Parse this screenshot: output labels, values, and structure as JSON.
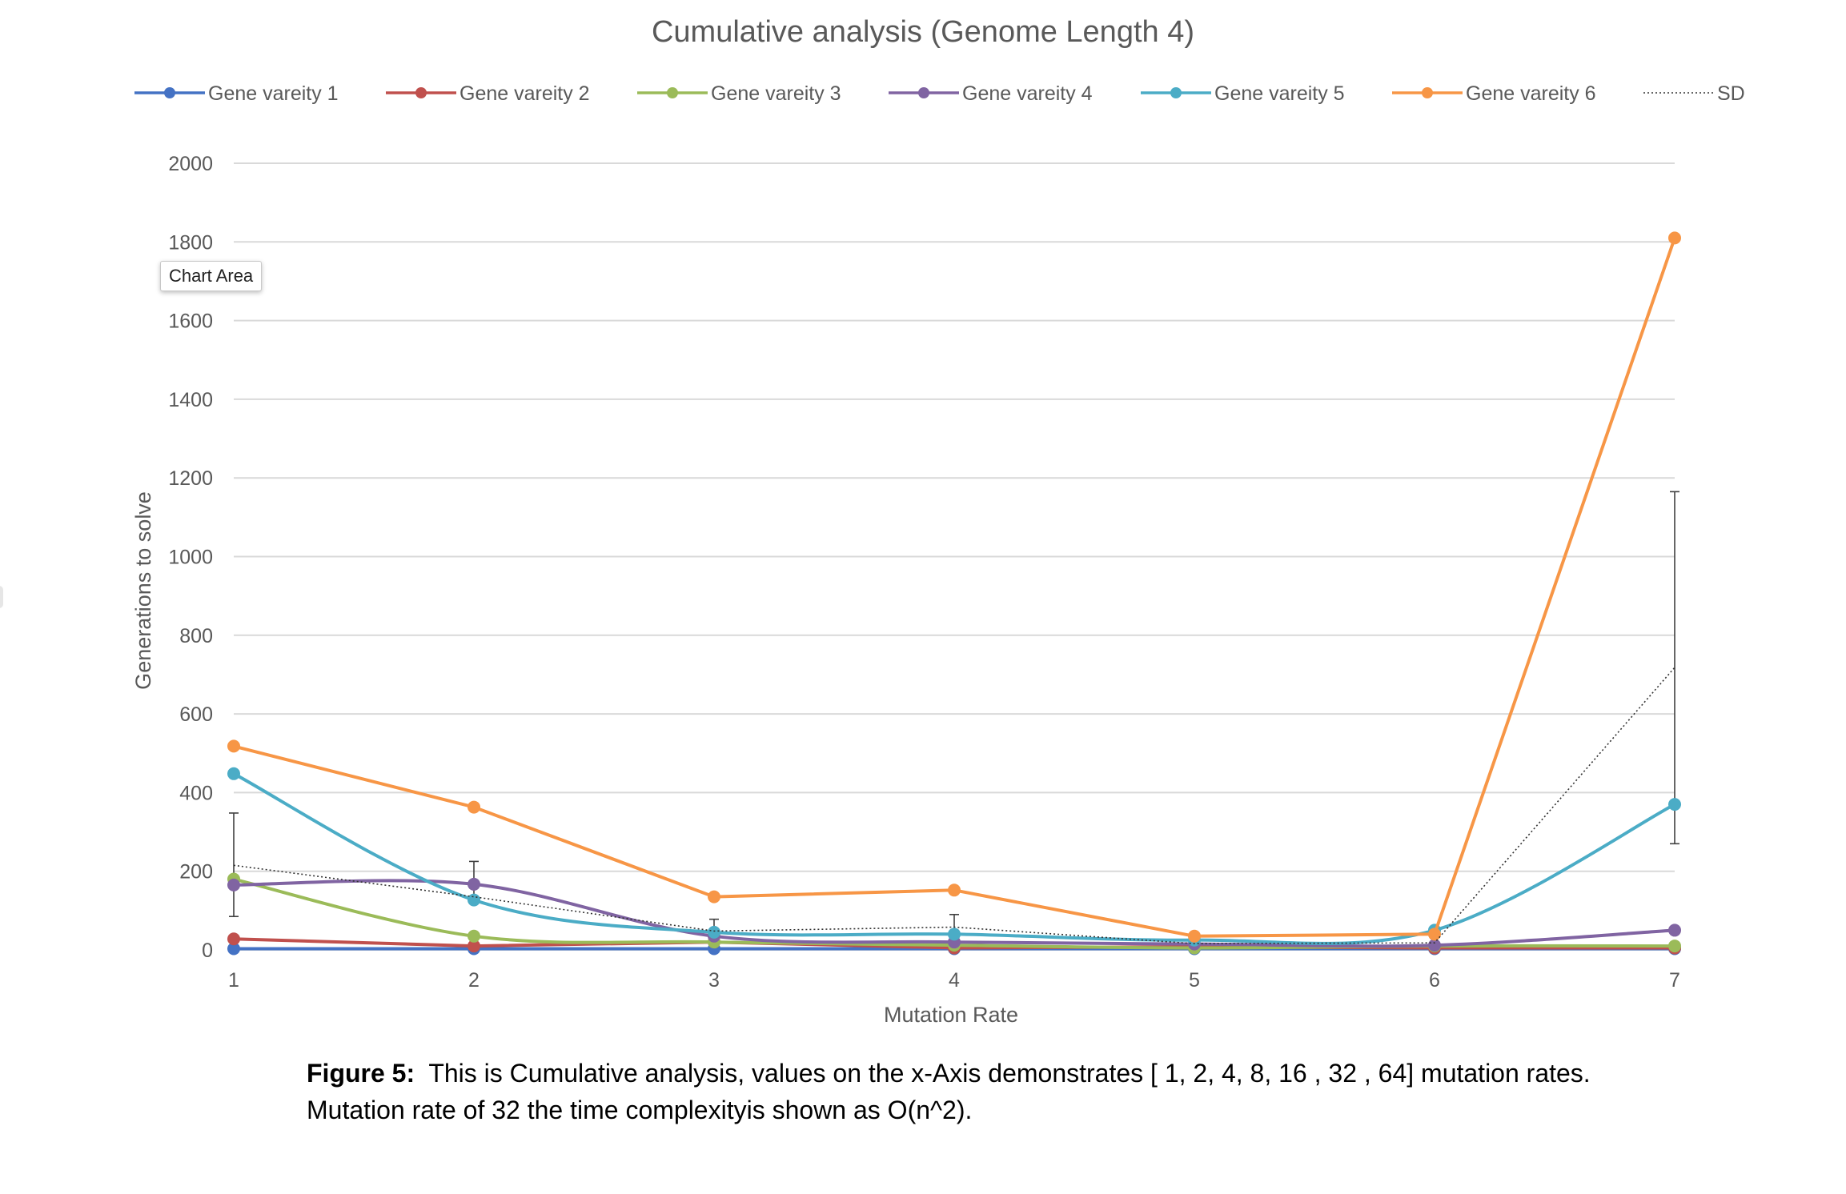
{
  "tooltip": "Chart Area",
  "caption": {
    "label": "Figure 5:",
    "text": "This is Cumulative analysis, values on the x-Axis demonstrates [ 1, 2, 4, 8, 16 , 32 , 64] mutation rates.",
    "line2": "Mutation rate of 32 the time complexityis shown as O(n^2)."
  },
  "chart_data": {
    "type": "line",
    "title": "Cumulative analysis (Genome Length 4)",
    "xlabel": "Mutation Rate",
    "ylabel": "Generations to solve",
    "categories": [
      "1",
      "2",
      "3",
      "4",
      "5",
      "6",
      "7"
    ],
    "ylim": [
      0,
      2000
    ],
    "yticks": [
      0,
      200,
      400,
      600,
      800,
      1000,
      1200,
      1400,
      1600,
      1800,
      2000
    ],
    "grid": true,
    "legend": "top",
    "series": [
      {
        "name": "Gene vareity 1",
        "color": "#4472c4",
        "smooth": false,
        "values": [
          3,
          3,
          3,
          3,
          3,
          3,
          3
        ]
      },
      {
        "name": "Gene vareity 2",
        "color": "#c0504d",
        "smooth": false,
        "values": [
          28,
          10,
          20,
          5,
          8,
          5,
          5
        ]
      },
      {
        "name": "Gene vareity 3",
        "color": "#9bbb59",
        "smooth": true,
        "values": [
          180,
          35,
          20,
          12,
          5,
          10,
          10
        ]
      },
      {
        "name": "Gene vareity 4",
        "color": "#8064a2",
        "smooth": true,
        "values": [
          165,
          167,
          35,
          20,
          15,
          12,
          50
        ]
      },
      {
        "name": "Gene vareity 5",
        "color": "#4bacc6",
        "smooth": true,
        "values": [
          448,
          127,
          45,
          40,
          25,
          50,
          370
        ]
      },
      {
        "name": "Gene vareity 6",
        "color": "#f79646",
        "smooth": false,
        "values": [
          518,
          363,
          135,
          152,
          35,
          40,
          1810
        ]
      }
    ],
    "sd": {
      "name": "SD",
      "color": "#333333",
      "style": "dotted",
      "values": [
        215,
        135,
        48,
        58,
        16,
        18,
        718
      ],
      "error_bars": [
        {
          "low": 85,
          "high": 348
        },
        {
          "low": 120,
          "high": 225
        },
        {
          "low": 25,
          "high": 78
        },
        {
          "low": 35,
          "high": 90
        },
        {
          "low": 8,
          "high": 25
        },
        {
          "low": 5,
          "high": 30
        },
        {
          "low": 270,
          "high": 1165
        }
      ]
    }
  }
}
